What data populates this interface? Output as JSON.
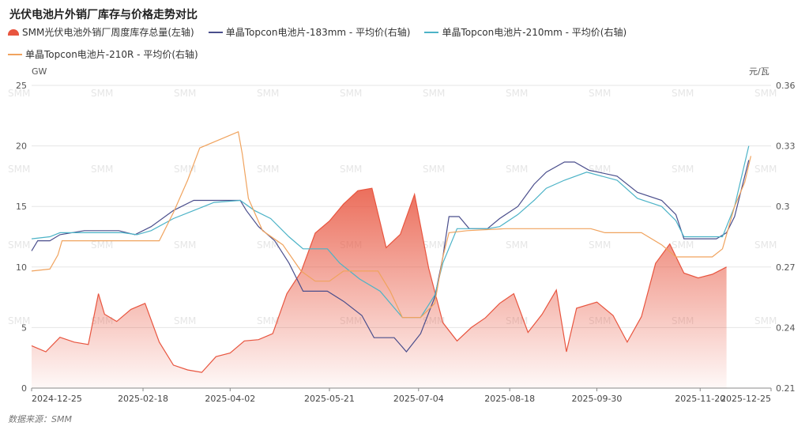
{
  "title": "光伏电池片外销厂库存与价格走势对比",
  "source": "数据来源：SMM",
  "watermark": "SMM",
  "colors": {
    "inventory": "#e8553f",
    "s183": "#4a4e8c",
    "s210": "#4cb3c7",
    "s210r": "#f0a35e"
  },
  "chart_data": {
    "type": "line",
    "left_axis": {
      "unit": "GW",
      "ylim": [
        0,
        25
      ],
      "ticks": [
        "0",
        "5",
        "10",
        "15",
        "20",
        "25"
      ]
    },
    "right_axis": {
      "unit": "元/瓦",
      "ylim": [
        0.21,
        0.36
      ],
      "ticks": [
        "0.21",
        "0.24",
        "0.27",
        "0.3",
        "0.33",
        "0.36"
      ]
    },
    "x_ticks": [
      "2024-12-25",
      "2025-02-18",
      "2025-04-02",
      "2025-05-21",
      "2025-07-04",
      "2025-08-18",
      "2025-09-30",
      "2025-11-20",
      "2025-12-25"
    ],
    "grid": true,
    "legend_position": "top",
    "series": [
      {
        "name": "SMM光伏电池外销厂周度库存总量(左轴)",
        "axis": "left",
        "style": "area",
        "points": [
          [
            "2024-12-25",
            3.5
          ],
          [
            "2025-01-01",
            3.0
          ],
          [
            "2025-01-08",
            4.2
          ],
          [
            "2025-01-15",
            3.8
          ],
          [
            "2025-01-22",
            3.6
          ],
          [
            "2025-01-27",
            7.8
          ],
          [
            "2025-01-30",
            6.1
          ],
          [
            "2025-02-05",
            5.5
          ],
          [
            "2025-02-12",
            6.5
          ],
          [
            "2025-02-19",
            7.0
          ],
          [
            "2025-02-26",
            3.8
          ],
          [
            "2025-03-05",
            1.9
          ],
          [
            "2025-03-12",
            1.5
          ],
          [
            "2025-03-19",
            1.3
          ],
          [
            "2025-03-26",
            2.6
          ],
          [
            "2025-04-02",
            2.9
          ],
          [
            "2025-04-09",
            3.9
          ],
          [
            "2025-04-16",
            4.0
          ],
          [
            "2025-04-23",
            4.5
          ],
          [
            "2025-04-30",
            7.8
          ],
          [
            "2025-05-07",
            9.6
          ],
          [
            "2025-05-14",
            12.8
          ],
          [
            "2025-05-21",
            13.8
          ],
          [
            "2025-05-28",
            15.2
          ],
          [
            "2025-06-04",
            16.3
          ],
          [
            "2025-06-11",
            16.5
          ],
          [
            "2025-06-18",
            11.6
          ],
          [
            "2025-06-25",
            12.7
          ],
          [
            "2025-07-02",
            16.0
          ],
          [
            "2025-07-09",
            9.9
          ],
          [
            "2025-07-16",
            5.4
          ],
          [
            "2025-07-23",
            3.9
          ],
          [
            "2025-07-30",
            5.0
          ],
          [
            "2025-08-06",
            5.8
          ],
          [
            "2025-08-13",
            7.0
          ],
          [
            "2025-08-20",
            7.8
          ],
          [
            "2025-08-27",
            4.6
          ],
          [
            "2025-09-03",
            6.1
          ],
          [
            "2025-09-10",
            8.1
          ],
          [
            "2025-09-15",
            3.0
          ],
          [
            "2025-09-20",
            6.6
          ],
          [
            "2025-09-30",
            7.1
          ],
          [
            "2025-10-08",
            6.0
          ],
          [
            "2025-10-15",
            3.8
          ],
          [
            "2025-10-22",
            5.9
          ],
          [
            "2025-10-29",
            10.3
          ],
          [
            "2025-11-05",
            11.9
          ],
          [
            "2025-11-12",
            9.5
          ],
          [
            "2025-11-19",
            9.1
          ],
          [
            "2025-11-26",
            9.4
          ],
          [
            "2025-12-03",
            10.0
          ]
        ]
      },
      {
        "name": "单晶Topcon电池片-183mm - 平均价(右轴)",
        "axis": "right",
        "style": "line",
        "points": [
          [
            "2024-12-25",
            0.278
          ],
          [
            "2024-12-28",
            0.283
          ],
          [
            "2025-01-03",
            0.283
          ],
          [
            "2025-01-08",
            0.286
          ],
          [
            "2025-01-20",
            0.288
          ],
          [
            "2025-02-06",
            0.288
          ],
          [
            "2025-02-14",
            0.286
          ],
          [
            "2025-02-22",
            0.29
          ],
          [
            "2025-03-05",
            0.298
          ],
          [
            "2025-03-15",
            0.303
          ],
          [
            "2025-04-07",
            0.303
          ],
          [
            "2025-04-10",
            0.298
          ],
          [
            "2025-04-16",
            0.29
          ],
          [
            "2025-04-24",
            0.283
          ],
          [
            "2025-05-01",
            0.272
          ],
          [
            "2025-05-08",
            0.258
          ],
          [
            "2025-05-20",
            0.258
          ],
          [
            "2025-05-28",
            0.253
          ],
          [
            "2025-06-06",
            0.246
          ],
          [
            "2025-06-12",
            0.235
          ],
          [
            "2025-06-22",
            0.235
          ],
          [
            "2025-06-28",
            0.228
          ],
          [
            "2025-07-05",
            0.237
          ],
          [
            "2025-07-12",
            0.255
          ],
          [
            "2025-07-16",
            0.275
          ],
          [
            "2025-07-19",
            0.295
          ],
          [
            "2025-07-24",
            0.295
          ],
          [
            "2025-07-29",
            0.289
          ],
          [
            "2025-08-07",
            0.289
          ],
          [
            "2025-08-13",
            0.294
          ],
          [
            "2025-08-22",
            0.3
          ],
          [
            "2025-08-30",
            0.311
          ],
          [
            "2025-09-05",
            0.317
          ],
          [
            "2025-09-14",
            0.322
          ],
          [
            "2025-09-19",
            0.322
          ],
          [
            "2025-09-26",
            0.318
          ],
          [
            "2025-10-10",
            0.315
          ],
          [
            "2025-10-20",
            0.307
          ],
          [
            "2025-11-01",
            0.303
          ],
          [
            "2025-11-08",
            0.296
          ],
          [
            "2025-11-12",
            0.284
          ],
          [
            "2025-11-28",
            0.284
          ],
          [
            "2025-12-03",
            0.287
          ],
          [
            "2025-12-07",
            0.295
          ],
          [
            "2025-12-14",
            0.323
          ]
        ]
      },
      {
        "name": "单晶Topcon电池片-210mm - 平均价(右轴)",
        "axis": "right",
        "style": "line",
        "points": [
          [
            "2024-12-25",
            0.284
          ],
          [
            "2025-01-03",
            0.285
          ],
          [
            "2025-01-08",
            0.287
          ],
          [
            "2025-02-08",
            0.287
          ],
          [
            "2025-02-15",
            0.286
          ],
          [
            "2025-02-22",
            0.288
          ],
          [
            "2025-03-05",
            0.294
          ],
          [
            "2025-03-15",
            0.298
          ],
          [
            "2025-03-25",
            0.302
          ],
          [
            "2025-04-07",
            0.303
          ],
          [
            "2025-04-14",
            0.298
          ],
          [
            "2025-04-22",
            0.294
          ],
          [
            "2025-05-01",
            0.285
          ],
          [
            "2025-05-08",
            0.279
          ],
          [
            "2025-05-20",
            0.279
          ],
          [
            "2025-05-26",
            0.272
          ],
          [
            "2025-06-05",
            0.264
          ],
          [
            "2025-06-15",
            0.258
          ],
          [
            "2025-06-26",
            0.245
          ],
          [
            "2025-07-05",
            0.245
          ],
          [
            "2025-07-12",
            0.256
          ],
          [
            "2025-07-16",
            0.272
          ],
          [
            "2025-07-23",
            0.289
          ],
          [
            "2025-08-07",
            0.289
          ],
          [
            "2025-08-13",
            0.29
          ],
          [
            "2025-08-22",
            0.296
          ],
          [
            "2025-08-30",
            0.303
          ],
          [
            "2025-09-05",
            0.309
          ],
          [
            "2025-09-14",
            0.313
          ],
          [
            "2025-09-25",
            0.317
          ],
          [
            "2025-10-10",
            0.313
          ],
          [
            "2025-10-20",
            0.304
          ],
          [
            "2025-11-01",
            0.3
          ],
          [
            "2025-11-08",
            0.293
          ],
          [
            "2025-11-12",
            0.285
          ],
          [
            "2025-12-01",
            0.285
          ],
          [
            "2025-12-07",
            0.3
          ],
          [
            "2025-12-14",
            0.33
          ]
        ]
      },
      {
        "name": "单晶Topcon电池片-210R - 平均价(右轴)",
        "axis": "right",
        "style": "line",
        "points": [
          [
            "2024-12-25",
            0.268
          ],
          [
            "2025-01-03",
            0.269
          ],
          [
            "2025-01-07",
            0.276
          ],
          [
            "2025-01-09",
            0.283
          ],
          [
            "2025-02-26",
            0.283
          ],
          [
            "2025-03-05",
            0.297
          ],
          [
            "2025-03-12",
            0.313
          ],
          [
            "2025-03-18",
            0.329
          ],
          [
            "2025-04-06",
            0.337
          ],
          [
            "2025-04-08",
            0.326
          ],
          [
            "2025-04-11",
            0.304
          ],
          [
            "2025-04-18",
            0.288
          ],
          [
            "2025-04-28",
            0.281
          ],
          [
            "2025-05-07",
            0.268
          ],
          [
            "2025-05-14",
            0.263
          ],
          [
            "2025-05-21",
            0.263
          ],
          [
            "2025-05-28",
            0.268
          ],
          [
            "2025-06-14",
            0.268
          ],
          [
            "2025-06-20",
            0.258
          ],
          [
            "2025-06-26",
            0.245
          ],
          [
            "2025-07-05",
            0.245
          ],
          [
            "2025-07-12",
            0.252
          ],
          [
            "2025-07-16",
            0.275
          ],
          [
            "2025-07-19",
            0.287
          ],
          [
            "2025-07-28",
            0.288
          ],
          [
            "2025-08-16",
            0.289
          ],
          [
            "2025-09-27",
            0.289
          ],
          [
            "2025-10-04",
            0.287
          ],
          [
            "2025-10-22",
            0.287
          ],
          [
            "2025-11-01",
            0.281
          ],
          [
            "2025-11-08",
            0.275
          ],
          [
            "2025-11-26",
            0.275
          ],
          [
            "2025-12-01",
            0.279
          ],
          [
            "2025-12-07",
            0.3
          ],
          [
            "2025-12-12",
            0.312
          ],
          [
            "2025-12-15",
            0.325
          ]
        ]
      }
    ]
  }
}
